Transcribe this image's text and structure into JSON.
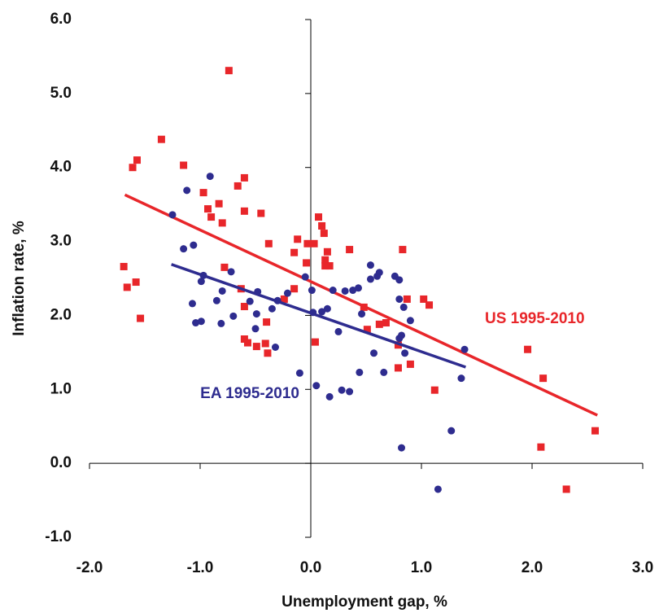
{
  "chart_data": {
    "type": "scatter",
    "x_label": "Unemployment gap, %",
    "y_label": "Inflation rate, %",
    "xlim": [
      -2,
      3
    ],
    "ylim": [
      -1,
      6
    ],
    "xticks": [
      {
        "value": -2,
        "label": "-2.0"
      },
      {
        "value": -1,
        "label": "-1.0"
      },
      {
        "value": 0,
        "label": "0.0"
      },
      {
        "value": 1,
        "label": "1.0"
      },
      {
        "value": 2,
        "label": "2.0"
      },
      {
        "value": 3,
        "label": "3.0"
      }
    ],
    "yticks": [
      {
        "value": -1,
        "label": "-1.0"
      },
      {
        "value": 0,
        "label": "0.0"
      },
      {
        "value": 1,
        "label": "1.0"
      },
      {
        "value": 2,
        "label": "2.0"
      },
      {
        "value": 3,
        "label": "3.0"
      },
      {
        "value": 4,
        "label": "4.0"
      },
      {
        "value": 5,
        "label": "5.0"
      },
      {
        "value": 6,
        "label": "6.0"
      }
    ],
    "series": [
      {
        "name": "US 1995-2010",
        "color": "#e8262a",
        "marker": "square",
        "x": [
          -1.69,
          -1.66,
          -1.58,
          -1.54,
          -1.61,
          -1.57,
          -1.35,
          -1.15,
          -0.74,
          -0.97,
          -0.93,
          -0.9,
          -0.83,
          -0.8,
          -0.66,
          -0.6,
          -0.6,
          -0.45,
          -0.38,
          -0.78,
          -0.63,
          -0.6,
          -0.6,
          -0.57,
          -0.49,
          -0.41,
          -0.4,
          -0.39,
          -0.24,
          -0.15,
          -0.12,
          -0.15,
          -0.03,
          0.03,
          -0.04,
          0.07,
          0.1,
          0.12,
          0.13,
          0.15,
          0.17,
          0.13,
          0.35,
          0.04,
          0.48,
          0.51,
          0.62,
          0.68,
          0.79,
          0.79,
          0.9,
          0.83,
          0.87,
          1.02,
          1.07,
          1.12,
          1.96,
          2.1,
          2.08,
          2.31,
          2.57
        ],
        "values": [
          2.66,
          2.38,
          2.45,
          1.96,
          4.0,
          4.1,
          4.38,
          4.03,
          5.31,
          3.66,
          3.44,
          3.33,
          3.51,
          3.25,
          3.75,
          3.86,
          3.41,
          3.38,
          2.97,
          2.65,
          2.36,
          2.12,
          1.68,
          1.63,
          1.58,
          1.62,
          1.91,
          1.49,
          2.22,
          2.36,
          3.03,
          2.85,
          2.97,
          2.97,
          2.71,
          3.33,
          3.21,
          3.11,
          2.75,
          2.86,
          2.67,
          2.67,
          2.89,
          1.64,
          2.11,
          1.81,
          1.88,
          1.9,
          1.6,
          1.29,
          1.34,
          2.89,
          2.22,
          2.22,
          2.14,
          0.99,
          1.54,
          1.15,
          0.22,
          -0.35,
          0.44
        ],
        "trend_x": [
          -1.68,
          2.59
        ],
        "trend_y": [
          3.63,
          0.65
        ]
      },
      {
        "name": "EA 1995-2010",
        "color": "#2e2c8f",
        "marker": "circle",
        "x": [
          -1.25,
          -1.12,
          -0.91,
          -1.15,
          -1.06,
          -1.07,
          -1.04,
          -0.99,
          -0.99,
          -0.97,
          -0.72,
          -0.8,
          -0.85,
          -0.81,
          -0.7,
          -0.55,
          -0.49,
          -0.48,
          -0.5,
          -0.35,
          -0.32,
          -0.3,
          -0.21,
          -0.1,
          -0.05,
          0.01,
          0.02,
          0.05,
          0.1,
          0.15,
          0.17,
          0.2,
          0.25,
          0.28,
          0.31,
          0.35,
          0.38,
          0.43,
          0.44,
          0.46,
          0.54,
          0.54,
          0.57,
          0.6,
          0.62,
          0.66,
          0.76,
          0.8,
          0.8,
          0.8,
          0.82,
          0.84,
          0.85,
          0.82,
          0.9,
          1.15,
          1.27,
          1.36,
          1.39
        ],
        "values": [
          3.36,
          3.69,
          3.88,
          2.9,
          2.95,
          2.16,
          1.9,
          1.92,
          2.46,
          2.54,
          2.59,
          2.33,
          2.2,
          1.89,
          1.99,
          2.19,
          2.02,
          2.32,
          1.82,
          2.09,
          1.57,
          2.2,
          2.3,
          1.22,
          2.52,
          2.34,
          2.04,
          1.05,
          2.05,
          2.09,
          0.9,
          2.34,
          1.78,
          0.99,
          2.33,
          0.97,
          2.34,
          2.37,
          1.23,
          2.02,
          2.68,
          2.49,
          1.49,
          2.53,
          2.58,
          1.23,
          2.53,
          2.48,
          2.22,
          1.69,
          1.73,
          2.11,
          1.49,
          0.21,
          1.93,
          -0.35,
          0.44,
          1.15,
          1.54
        ],
        "trend_x": [
          -1.26,
          1.4
        ],
        "trend_y": [
          2.69,
          1.3
        ]
      }
    ]
  }
}
